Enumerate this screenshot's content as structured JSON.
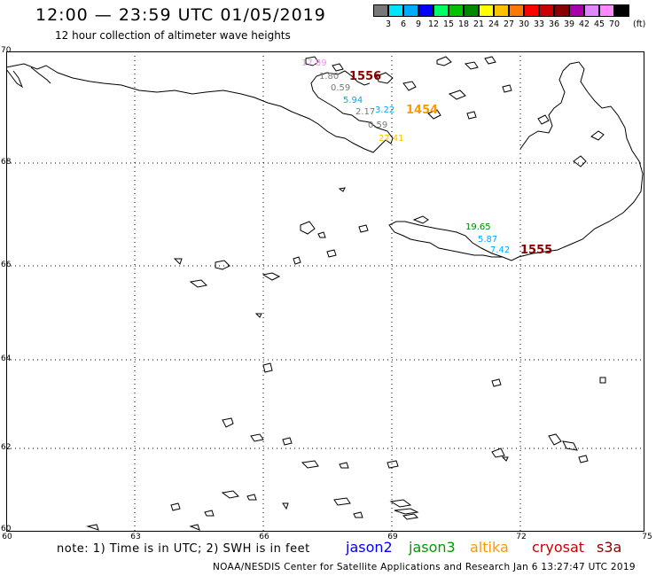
{
  "title": "12:00 — 23:59 UTC 01/05/2019",
  "subtitle": "12 hour collection of altimeter wave heights",
  "colorbar": {
    "unit_label": "(ft)",
    "labels": [
      "3",
      "6",
      "9",
      "12",
      "15",
      "18",
      "21",
      "24",
      "27",
      "30",
      "33",
      "36",
      "39",
      "42",
      "45",
      "70"
    ],
    "colors": [
      "#777777",
      "#00e5ff",
      "#00aaff",
      "#0000ff",
      "#00ff66",
      "#00c400",
      "#008800",
      "#ffff00",
      "#ffc000",
      "#ff7800",
      "#ff0000",
      "#cc0000",
      "#880000",
      "#aa00aa",
      "#dd88ff",
      "#ff88ff",
      "#000000"
    ]
  },
  "map": {
    "lat_labels": [
      "70",
      "68",
      "66",
      "64",
      "62",
      "60"
    ],
    "lon_labels": [
      "60",
      "63",
      "66",
      "69",
      "72",
      "75"
    ]
  },
  "measurements": [
    {
      "label": "17.89",
      "color": "#ff88ff"
    },
    {
      "label": "1.80",
      "color": "#777777"
    },
    {
      "label": "0.59",
      "color": "#777777"
    },
    {
      "label": "5.94",
      "color": "#00aaff"
    },
    {
      "label": "2.17",
      "color": "#777777"
    },
    {
      "label": "3.22",
      "color": "#00aaff"
    },
    {
      "label": "0.59",
      "color": "#777777"
    },
    {
      "label": "27.41",
      "color": "#ffc000"
    },
    {
      "label": "19.65",
      "color": "#008800"
    },
    {
      "label": "5.87",
      "color": "#00aaff"
    },
    {
      "label": "7.42",
      "color": "#00aaff"
    }
  ],
  "passes": [
    {
      "label": "1556",
      "color": "#880000"
    },
    {
      "label": "1454",
      "color": "#ff9900"
    },
    {
      "label": "1555",
      "color": "#880000"
    }
  ],
  "note": "note: 1) Time is in UTC; 2) SWH is in feet",
  "missions": [
    {
      "label": "jason2",
      "color": "#0000ee"
    },
    {
      "label": "jason3",
      "color": "#009900"
    },
    {
      "label": "altika",
      "color": "#ff9900"
    },
    {
      "label": "cryosat",
      "color": "#cc0000"
    },
    {
      "label": "s3a",
      "color": "#880000"
    }
  ],
  "footer": "NOAA/NESDIS Center for Satellite Applications and Research    Jan  6 13:27:47 UTC 2019"
}
